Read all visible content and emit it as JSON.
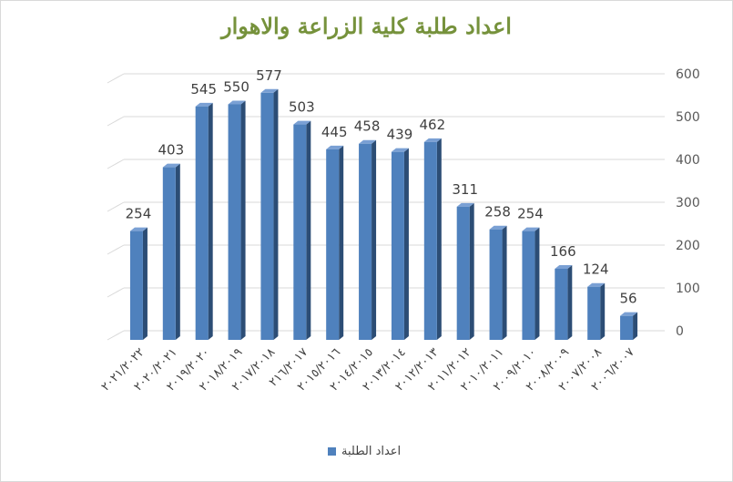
{
  "chart_data": {
    "type": "bar",
    "title": "اعداد طلبة كلية الزراعة والاهوار",
    "categories": [
      "٢٠٢١/٢٠٢٢",
      "٢٠٢٠/٢٠٢١",
      "٢٠١٩/٢٠٢٠",
      "٢٠١٨/٢٠١٩",
      "٢٠١٧/٢٠١٨",
      "٢١٦/٢٠١٧",
      "٢٠١٥/٢٠١٦",
      "٢٠١٤/٢٠١٥",
      "٢٠١٣/٢٠١٤",
      "٢٠١٢/٢٠١٣",
      "٢٠١١/٢٠١٢",
      "٢٠١٠/٢٠١١",
      "٢٠٠٩/٢٠١٠",
      "٢٠٠٨/٢٠٠٩",
      "٢٠٠٧/٢٠٠٨",
      "٢٠٠٦/٢٠٠٧"
    ],
    "series": [
      {
        "name": "اعداد الطلبة",
        "values": [
          254,
          403,
          545,
          550,
          577,
          503,
          445,
          458,
          439,
          462,
          311,
          258,
          254,
          166,
          124,
          56
        ]
      }
    ],
    "yticks": [
      "0",
      "100",
      "200",
      "300",
      "400",
      "500",
      "600"
    ],
    "ylim": [
      0,
      600
    ],
    "grid": true,
    "legend_position": "bottom",
    "colors": {
      "bar_front": "#4f81bd",
      "bar_side": "#2c4d75",
      "bar_top": "#7aa0d4",
      "title": "#76923c"
    }
  }
}
